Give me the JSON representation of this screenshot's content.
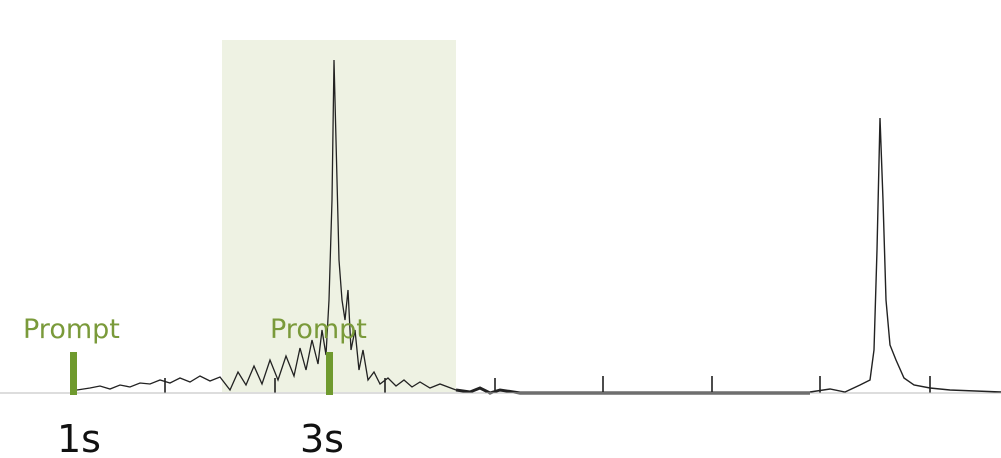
{
  "prompts": [
    "Prompt",
    "Prompt"
  ],
  "times": [
    "1s",
    "3s"
  ]
}
